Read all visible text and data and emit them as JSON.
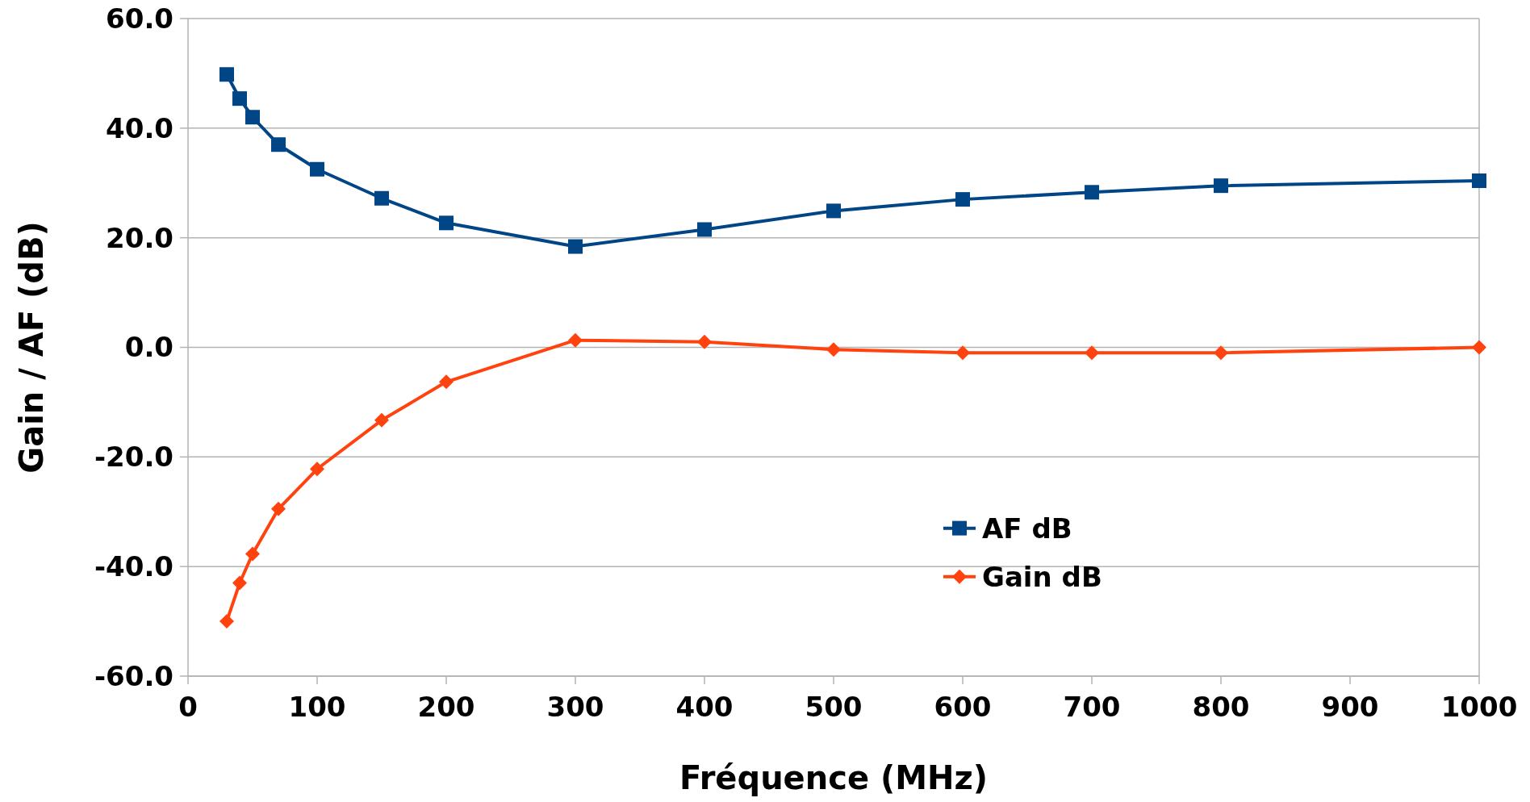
{
  "chart_data": {
    "type": "line",
    "xlabel": "Fréquence (MHz)",
    "ylabel": "Gain / AF (dB)",
    "x": [
      30,
      40,
      50,
      70,
      100,
      150,
      200,
      300,
      400,
      500,
      600,
      700,
      800,
      1000
    ],
    "series": [
      {
        "name": "AF dB",
        "color": "#004586",
        "marker": "square",
        "values": [
          49.8,
          45.4,
          42.0,
          37.0,
          32.5,
          27.2,
          22.7,
          18.4,
          21.5,
          24.9,
          27.0,
          28.3,
          29.5,
          30.4
        ]
      },
      {
        "name": "Gain dB",
        "color": "#ff420e",
        "marker": "diamond",
        "values": [
          -50.0,
          -43.0,
          -37.7,
          -29.5,
          -22.2,
          -13.3,
          -6.3,
          1.3,
          1.0,
          -0.4,
          -1.0,
          -1.0,
          -1.0,
          0.0
        ]
      }
    ],
    "xlim": [
      0,
      1000
    ],
    "xticks": [
      0,
      100,
      200,
      300,
      400,
      500,
      600,
      700,
      800,
      900,
      1000
    ],
    "ylim": [
      -60,
      60
    ],
    "yticks": [
      {
        "value": -60,
        "label": "-60.0"
      },
      {
        "value": -40,
        "label": "-40.0"
      },
      {
        "value": -20,
        "label": "-20.0"
      },
      {
        "value": 0,
        "label": "0.0"
      },
      {
        "value": 20,
        "label": "20.0"
      },
      {
        "value": 40,
        "label": "40.0"
      },
      {
        "value": 60,
        "label": "60.0"
      }
    ],
    "grid": "y",
    "legend": "right"
  }
}
